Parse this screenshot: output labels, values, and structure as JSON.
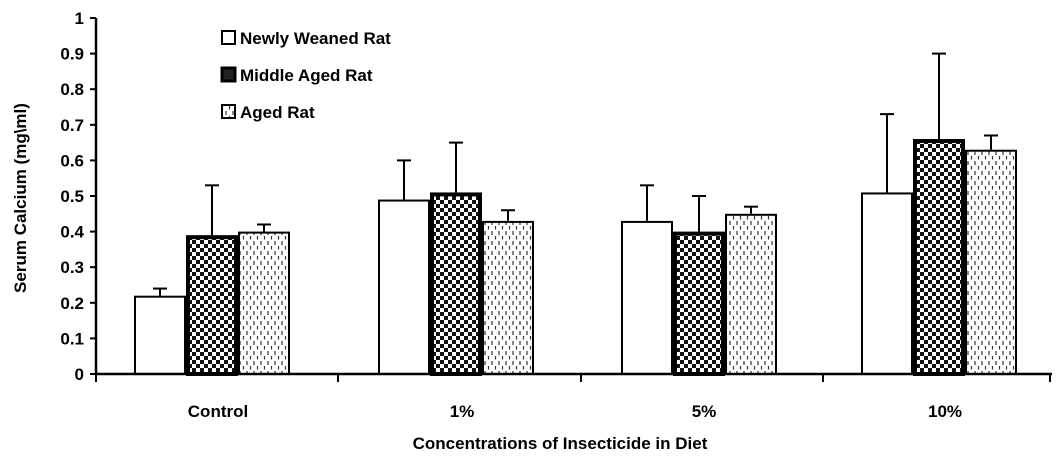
{
  "chart_data": {
    "type": "bar",
    "title": "",
    "xlabel": "Concentrations of Insecticide in Diet",
    "ylabel": "Serum Calcium (mg\\ml)",
    "ylim": [
      0,
      1
    ],
    "yticks": [
      "0",
      "0.1",
      "0.2",
      "0.3",
      "0.4",
      "0.5",
      "0.6",
      "0.7",
      "0.8",
      "0.9",
      "1"
    ],
    "categories": [
      "Control",
      "1%",
      "5%",
      "10%"
    ],
    "series": [
      {
        "name": "Newly Weaned Rat",
        "pattern": "plain",
        "values": [
          0.22,
          0.49,
          0.43,
          0.51
        ],
        "errors": [
          0.02,
          0.11,
          0.1,
          0.22
        ]
      },
      {
        "name": "Middle Aged Rat",
        "pattern": "checker",
        "values": [
          0.39,
          0.51,
          0.4,
          0.66
        ],
        "errors": [
          0.14,
          0.14,
          0.1,
          0.24
        ]
      },
      {
        "name": "Aged Rat",
        "pattern": "dashes",
        "values": [
          0.4,
          0.43,
          0.45,
          0.63
        ],
        "errors": [
          0.02,
          0.03,
          0.02,
          0.04
        ]
      }
    ],
    "grid": false,
    "legend_position": "top-left"
  }
}
